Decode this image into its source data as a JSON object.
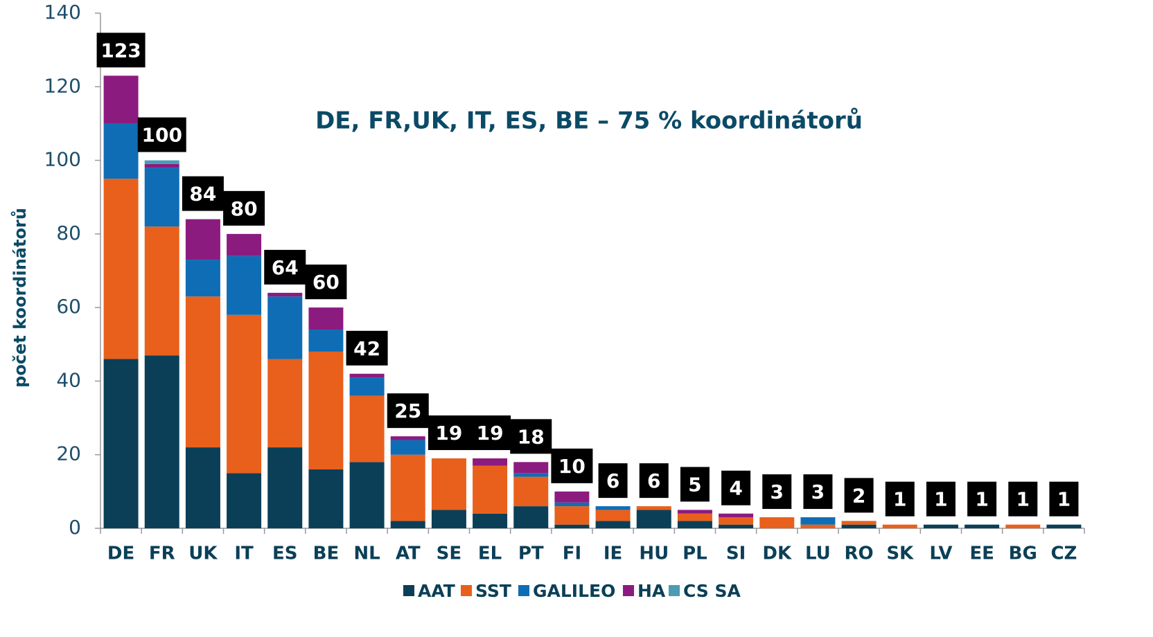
{
  "chart_data": {
    "type": "stacked_bar",
    "annotation": "DE, FR,UK, IT, ES, BE – 75 % koordinátorů",
    "y_label": "počet koordinátorů",
    "categories": [
      "DE",
      "FR",
      "UK",
      "IT",
      "ES",
      "BE",
      "NL",
      "AT",
      "SE",
      "EL",
      "PT",
      "FI",
      "IE",
      "HU",
      "PL",
      "SI",
      "DK",
      "LU",
      "RO",
      "SK",
      "LV",
      "EE",
      "BG",
      "CZ"
    ],
    "series": [
      {
        "name": "AAT",
        "color": "#0b3f57",
        "values": [
          46,
          47,
          22,
          15,
          22,
          16,
          18,
          2,
          5,
          4,
          6,
          1,
          2,
          5,
          2,
          1,
          0,
          0,
          1,
          0,
          1,
          1,
          0,
          1
        ]
      },
      {
        "name": "SST",
        "color": "#e8601c",
        "values": [
          49,
          35,
          41,
          43,
          24,
          32,
          18,
          18,
          14,
          13,
          8,
          5,
          3,
          1,
          2,
          2,
          3,
          1,
          1,
          1,
          0,
          0,
          1,
          0
        ]
      },
      {
        "name": "GALILEO",
        "color": "#0f6db5",
        "values": [
          15,
          16,
          10,
          16,
          17,
          6,
          5,
          4,
          0,
          0,
          1,
          1,
          1,
          0,
          0,
          0,
          0,
          2,
          0,
          0,
          0,
          0,
          0,
          0
        ]
      },
      {
        "name": "HA",
        "color": "#8c1b7f",
        "values": [
          13,
          1,
          11,
          6,
          1,
          6,
          1,
          1,
          0,
          2,
          3,
          3,
          0,
          0,
          1,
          1,
          0,
          0,
          0,
          0,
          0,
          0,
          0,
          0
        ]
      },
      {
        "name": "CS SA",
        "color": "#4a9cb5",
        "values": [
          0,
          1,
          0,
          0,
          0,
          0,
          0,
          0,
          0,
          0,
          0,
          0,
          0,
          0,
          0,
          0,
          0,
          0,
          0,
          0,
          0,
          0,
          0,
          0
        ]
      }
    ],
    "totals": [
      123,
      100,
      84,
      80,
      64,
      60,
      42,
      25,
      19,
      19,
      18,
      10,
      6,
      6,
      5,
      4,
      3,
      3,
      2,
      1,
      1,
      1,
      1,
      1
    ],
    "ylim": [
      0,
      140
    ],
    "yticks": [
      0,
      20,
      40,
      60,
      80,
      100,
      120,
      140
    ],
    "legend": "bottom"
  }
}
